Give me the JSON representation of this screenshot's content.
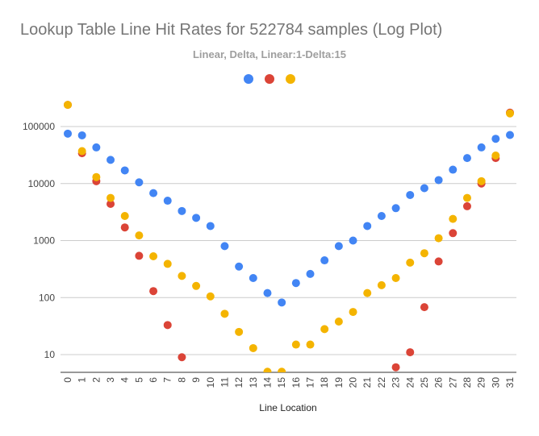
{
  "chart_data": {
    "type": "scatter",
    "title": "Lookup Table Line Hit Rates for 522784 samples (Log Plot)",
    "subtitle": "Linear, Delta, Linear:1-Delta:15",
    "xlabel": "Line Location",
    "ylabel": "",
    "yscale": "log",
    "ylim": [
      3,
      300000
    ],
    "y_ticks": [
      10,
      100,
      1000,
      10000,
      100000
    ],
    "y_tick_labels": [
      "10",
      "100",
      "1000",
      "10000",
      "100000"
    ],
    "x": [
      0,
      1,
      2,
      3,
      4,
      5,
      6,
      7,
      8,
      9,
      10,
      11,
      12,
      13,
      14,
      15,
      16,
      17,
      18,
      19,
      20,
      21,
      22,
      23,
      24,
      25,
      26,
      27,
      28,
      29,
      30,
      31
    ],
    "x_tick_labels": [
      "0",
      "1",
      "2",
      "3",
      "4",
      "5",
      "6",
      "7",
      "8",
      "9",
      "10",
      "11",
      "12",
      "13",
      "14",
      "15",
      "16",
      "17",
      "18",
      "19",
      "20",
      "21",
      "22",
      "23",
      "24",
      "25",
      "26",
      "27",
      "28",
      "29",
      "30",
      "31"
    ],
    "grid": true,
    "legend_position": "top",
    "series": [
      {
        "color": "#4285f4",
        "values": [
          75000,
          70000,
          43000,
          26000,
          17000,
          10500,
          6800,
          5000,
          3300,
          2500,
          1800,
          800,
          350,
          220,
          120,
          82,
          180,
          260,
          450,
          800,
          1000,
          1800,
          2700,
          3700,
          6300,
          8300,
          11500,
          17500,
          28000,
          43000,
          61000,
          71000
        ]
      },
      {
        "color": "#db4437",
        "values": [
          240000,
          34000,
          11000,
          4400,
          1700,
          540,
          130,
          33,
          9,
          null,
          null,
          null,
          null,
          null,
          null,
          null,
          null,
          null,
          null,
          null,
          null,
          null,
          null,
          6,
          11,
          68,
          430,
          1350,
          4000,
          10000,
          28000,
          175000
        ]
      },
      {
        "color": "#f4b400",
        "values": [
          240000,
          37000,
          13000,
          5600,
          2700,
          1230,
          530,
          390,
          240,
          160,
          105,
          52,
          25,
          13,
          5,
          5,
          15,
          15,
          28,
          38,
          56,
          120,
          165,
          220,
          410,
          600,
          1100,
          2400,
          5600,
          11000,
          31000,
          170000
        ]
      }
    ]
  }
}
